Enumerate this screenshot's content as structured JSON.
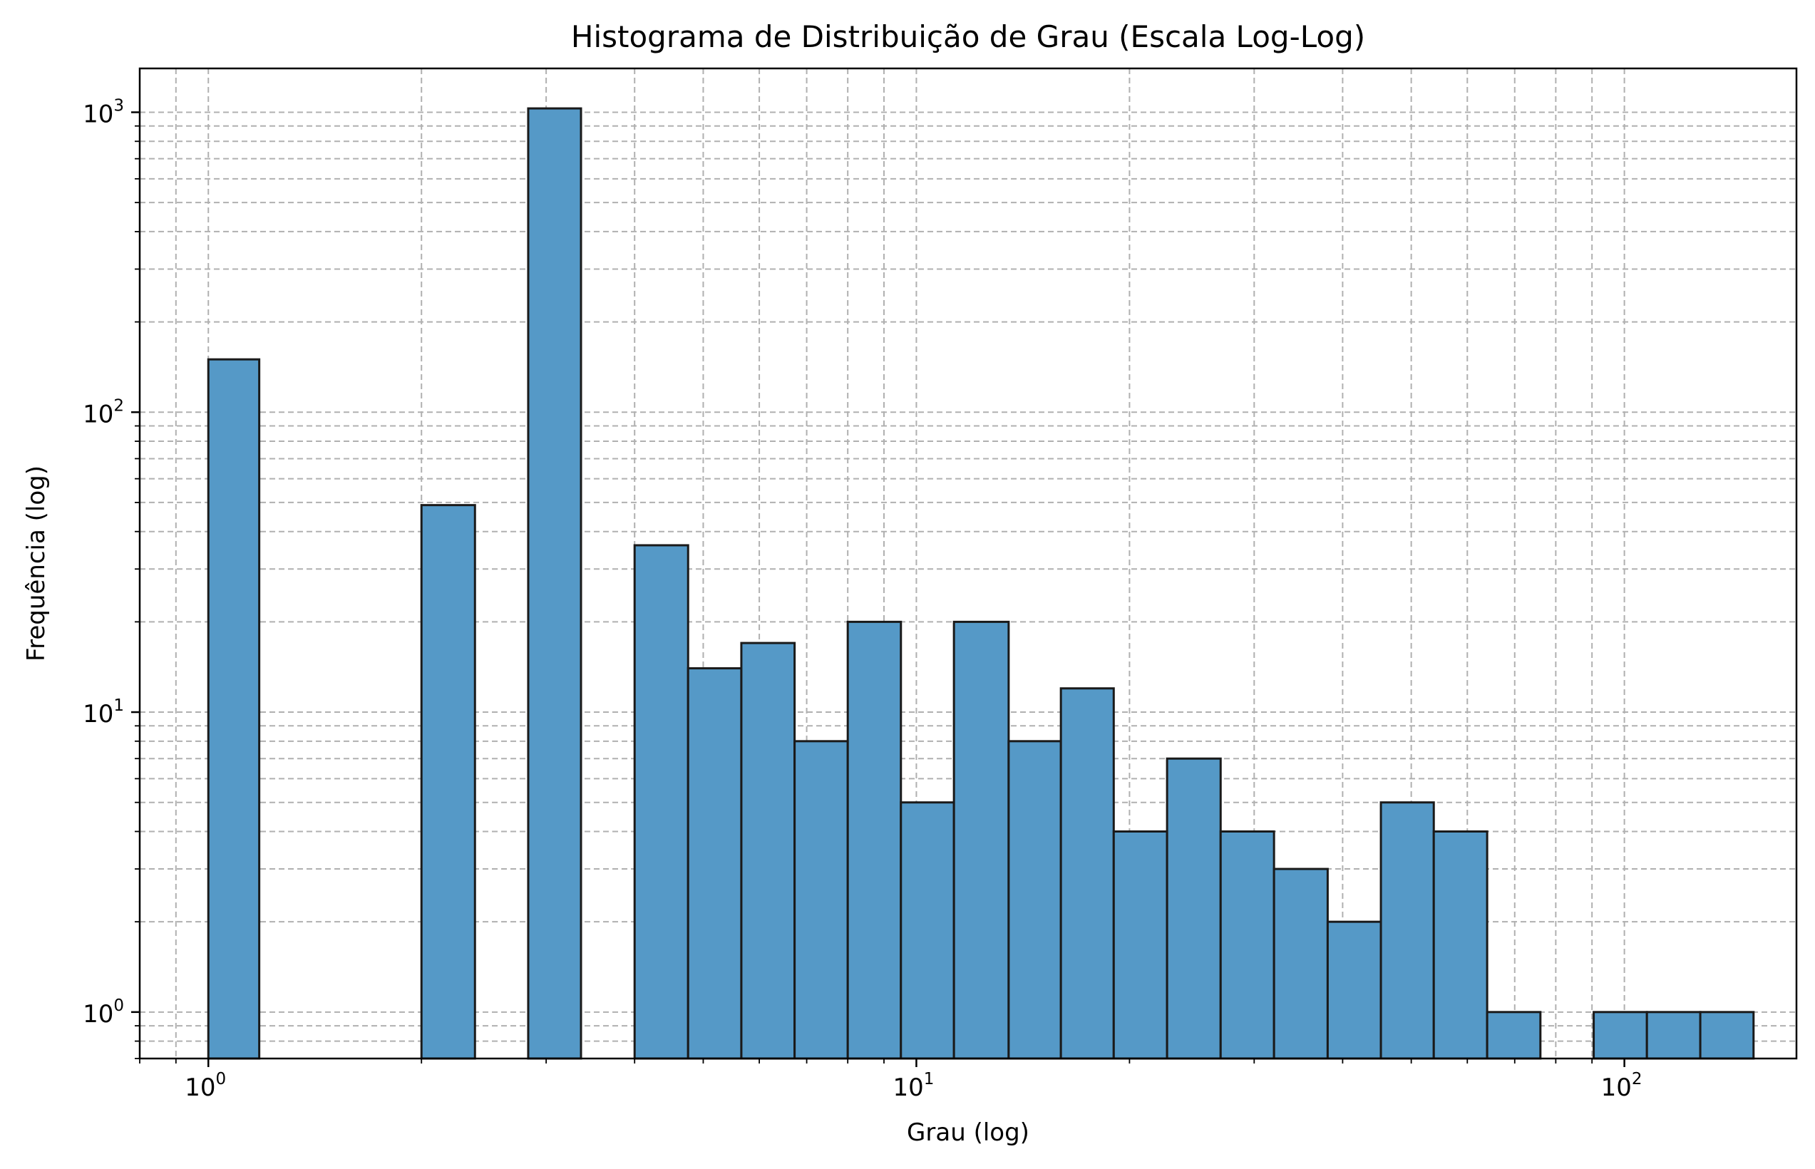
{
  "chart_data": {
    "type": "bar",
    "title": "Histograma de Distribuição de Grau (Escala Log-Log)",
    "xlabel": "Grau (log)",
    "ylabel": "Frequência (log)",
    "x_scale": "log",
    "y_scale": "log",
    "xlim": [
      0.8,
      175
    ],
    "ylim": [
      0.7,
      1400
    ],
    "grid": true,
    "grid_which": "both",
    "bar_color": "#5599c7",
    "edge_color": "#1a1a1a",
    "x_ticks": [
      {
        "base": "10",
        "exp": "0",
        "value": 1
      },
      {
        "base": "10",
        "exp": "1",
        "value": 10
      },
      {
        "base": "10",
        "exp": "2",
        "value": 100
      }
    ],
    "y_ticks": [
      {
        "base": "10",
        "exp": "0",
        "value": 1
      },
      {
        "base": "10",
        "exp": "1",
        "value": 10
      },
      {
        "base": "10",
        "exp": "2",
        "value": 100
      },
      {
        "base": "10",
        "exp": "3",
        "value": 1000
      }
    ],
    "bins": [
      {
        "left": 1.0,
        "right": 1.18,
        "count": 150
      },
      {
        "left": 1.18,
        "right": 1.4,
        "count": 0
      },
      {
        "left": 1.4,
        "right": 1.68,
        "count": 0
      },
      {
        "left": 1.68,
        "right": 2.0,
        "count": 0
      },
      {
        "left": 2.0,
        "right": 2.38,
        "count": 49
      },
      {
        "left": 2.38,
        "right": 2.83,
        "count": 0
      },
      {
        "left": 2.83,
        "right": 3.36,
        "count": 1030
      },
      {
        "left": 3.36,
        "right": 4.0,
        "count": 0
      },
      {
        "left": 4.0,
        "right": 4.76,
        "count": 36
      },
      {
        "left": 4.76,
        "right": 5.66,
        "count": 14
      },
      {
        "left": 5.66,
        "right": 6.73,
        "count": 17
      },
      {
        "left": 6.73,
        "right": 8.0,
        "count": 8
      },
      {
        "left": 8.0,
        "right": 9.51,
        "count": 20
      },
      {
        "left": 9.51,
        "right": 11.3,
        "count": 5
      },
      {
        "left": 11.3,
        "right": 13.5,
        "count": 20
      },
      {
        "left": 13.5,
        "right": 16.0,
        "count": 8
      },
      {
        "left": 16.0,
        "right": 19.0,
        "count": 12
      },
      {
        "left": 19.0,
        "right": 22.6,
        "count": 4
      },
      {
        "left": 22.6,
        "right": 26.9,
        "count": 7
      },
      {
        "left": 26.9,
        "right": 32.0,
        "count": 4
      },
      {
        "left": 32.0,
        "right": 38.1,
        "count": 3
      },
      {
        "left": 38.1,
        "right": 45.3,
        "count": 2
      },
      {
        "left": 45.3,
        "right": 53.8,
        "count": 5
      },
      {
        "left": 53.8,
        "right": 64.0,
        "count": 4
      },
      {
        "left": 64.0,
        "right": 76.1,
        "count": 1
      },
      {
        "left": 76.1,
        "right": 90.5,
        "count": 0
      },
      {
        "left": 90.5,
        "right": 107.6,
        "count": 1
      },
      {
        "left": 107.6,
        "right": 128.0,
        "count": 1
      },
      {
        "left": 128.0,
        "right": 152.2,
        "count": 1
      }
    ]
  }
}
